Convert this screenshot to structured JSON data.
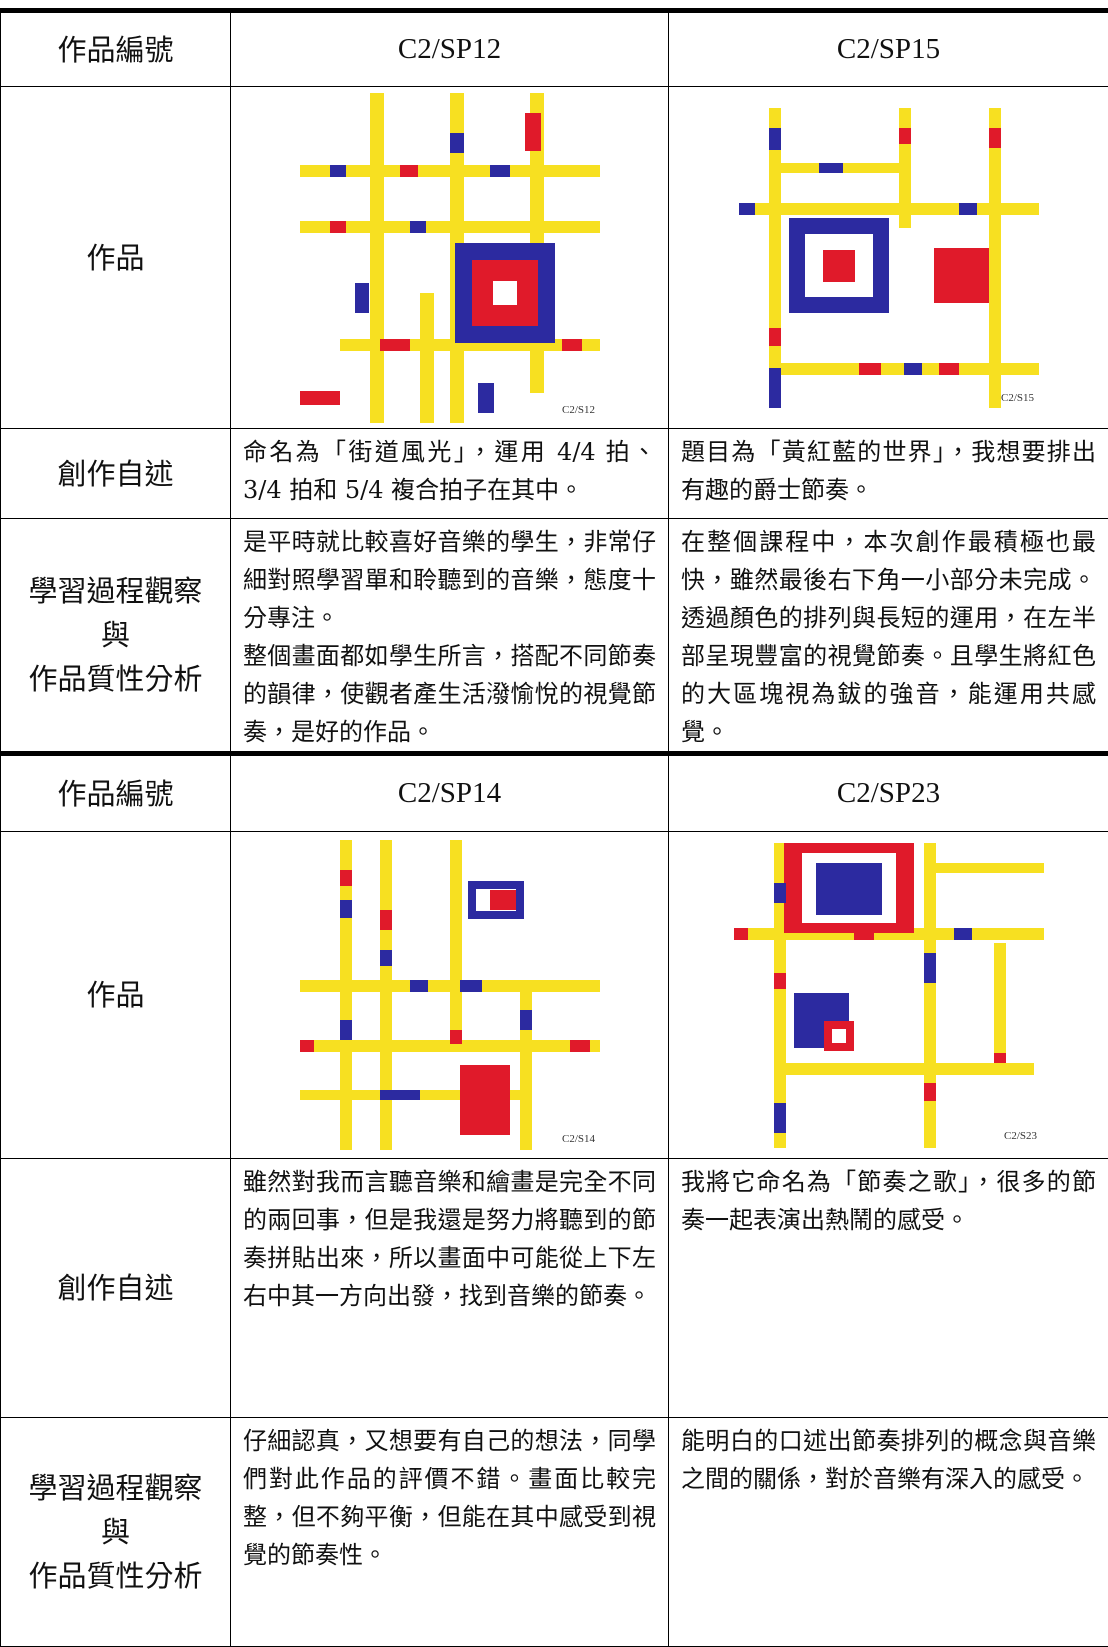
{
  "sections": [
    {
      "header_label": "作品編號",
      "ids": [
        "C2/SP12",
        "C2/SP15"
      ],
      "artwork_label": "作品",
      "artwork_tags": [
        "C2/S12",
        "C2/S15"
      ],
      "statement_label": "創作自述",
      "statements": [
        "命名為「街道風光」，運用 4/4 拍、3/4 拍和 5/4 複合拍子在其中。",
        "題目為「黃紅藍的世界」，我想要排出有趣的爵士節奏。"
      ],
      "analysis_label": [
        "學習過程觀察",
        "與",
        "作品質性分析"
      ],
      "analyses": [
        [
          "是平時就比較喜好音樂的學生，非常仔細對照學習單和聆聽到的音樂，態度十分專注。",
          "整個畫面都如學生所言，搭配不同節奏的韻律，使觀者產生活潑愉悅的視覺節奏，是好的作品。"
        ],
        [
          "在整個課程中，本次創作最積極也最快，雖然最後右下角一小部分未完成。透過顏色的排列與長短的運用，在左半部呈現豐富的視覺節奏。且學生將紅色的大區塊視為鈸的強音，能運用共感覺。"
        ]
      ]
    },
    {
      "header_label": "作品編號",
      "ids": [
        "C2/SP14",
        "C2/SP23"
      ],
      "artwork_label": "作品",
      "artwork_tags": [
        "C2/S14",
        "C2/S23"
      ],
      "statement_label": "創作自述",
      "statements": [
        "雖然對我而言聽音樂和繪畫是完全不同的兩回事，但是我還是努力將聽到的節奏拼貼出來，所以畫面中可能從上下左右中其一方向出發，找到音樂的節奏。",
        "我將它命名為「節奏之歌」，很多的節奏一起表演出熱鬧的感受。"
      ],
      "analysis_label": [
        "學習過程觀察",
        "與",
        "作品質性分析"
      ],
      "analyses": [
        [
          "仔細認真，又想要有自己的想法，同學們對此作品的評價不錯。畫面比較完整，但不夠平衡，但能在其中感受到視覺的節奏性。"
        ],
        [
          "能明白的口述出節奏排列的概念與音樂之間的關係，對於音樂有深入的感受。"
        ]
      ]
    }
  ]
}
